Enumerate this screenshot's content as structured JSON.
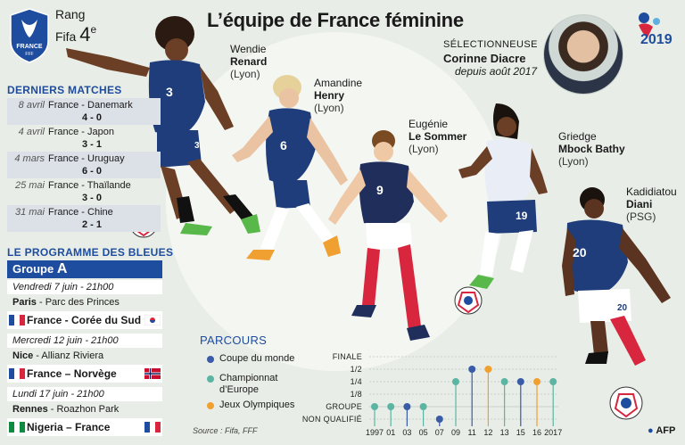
{
  "header": {
    "title": "L’équipe de France féminine",
    "rank_label": "Rang",
    "rank_fifa_label": "Fifa",
    "rank_value": "4",
    "rank_suffix": "e",
    "badge_text": "FRANCE",
    "badge_sub": "FFF",
    "worldcup_year": "2019"
  },
  "coach": {
    "role": "Sélectionneuse",
    "name": "Corinne Diacre",
    "since": "depuis août 2017"
  },
  "players": [
    {
      "first": "Wendie",
      "last": "Renard",
      "club": "(Lyon)",
      "number": "3"
    },
    {
      "first": "Amandine",
      "last": "Henry",
      "club": "(Lyon)",
      "number": "6"
    },
    {
      "first": "Eugénie",
      "last": "Le Sommer",
      "club": "(Lyon)",
      "number": "9"
    },
    {
      "first": "Griedge",
      "last": "Mbock Bathy",
      "club": "(Lyon)",
      "number": "19"
    },
    {
      "first": "Kadidiatou",
      "last": "Diani",
      "club": "(PSG)",
      "number": "20"
    }
  ],
  "recent_matches": {
    "title": "Derniers matches",
    "items": [
      {
        "date": "8 avril",
        "teams": "France - Danemark",
        "score": "4 - 0"
      },
      {
        "date": "4 avril",
        "teams": "France - Japon",
        "score": "3 - 1"
      },
      {
        "date": "4 mars",
        "teams": "France - Uruguay",
        "score": "6 - 0"
      },
      {
        "date": "25 mai",
        "teams": "France - Thaïlande",
        "score": "3 - 0"
      },
      {
        "date": "31 mai",
        "teams": "France - Chine",
        "score": "2 - 1"
      }
    ]
  },
  "programme": {
    "title": "Le programme des Bleues",
    "group_label": "Groupe",
    "group_letter": "A",
    "fixtures": [
      {
        "date": "Vendredi 7 juin - 21h00",
        "city": "Paris",
        "stadium": " - Parc des Princes",
        "match": "France - Corée du Sud"
      },
      {
        "date": "Mercredi 12 juin - 21h00",
        "city": "Nice",
        "stadium": " - Allianz Riviera",
        "match": "France – Norvège"
      },
      {
        "date": "Lundi 17 juin - 21h00",
        "city": "Rennes",
        "stadium": " - Roazhon Park",
        "match": "Nigeria – France"
      }
    ]
  },
  "parcours": {
    "title": "Parcours",
    "legend": [
      {
        "label": "Coupe du monde",
        "color": "#3a5ba8"
      },
      {
        "label": "Championnat d’Europe",
        "color": "#5bb5a2"
      },
      {
        "label": "Jeux Olympiques",
        "color": "#f0a030"
      }
    ],
    "levels": [
      "Finale",
      "1/2",
      "1/4",
      "1/8",
      "Groupe",
      "Non qualifié"
    ],
    "years": [
      "1997",
      "01",
      "03",
      "05",
      "07",
      "09",
      "11",
      "12",
      "13",
      "15",
      "16",
      "2017"
    ],
    "results": [
      {
        "year": "1997",
        "level": "Groupe",
        "color": "#5bb5a2"
      },
      {
        "year": "01",
        "level": "Groupe",
        "color": "#5bb5a2"
      },
      {
        "year": "03",
        "level": "Groupe",
        "color": "#3a5ba8"
      },
      {
        "year": "05",
        "level": "Groupe",
        "color": "#5bb5a2"
      },
      {
        "year": "07",
        "level": "Non qualifié",
        "color": "#3a5ba8"
      },
      {
        "year": "09",
        "level": "1/4",
        "color": "#5bb5a2"
      },
      {
        "year": "11",
        "level": "1/2",
        "color": "#3a5ba8"
      },
      {
        "year": "12",
        "level": "1/2",
        "color": "#f0a030"
      },
      {
        "year": "13",
        "level": "1/4",
        "color": "#5bb5a2"
      },
      {
        "year": "15",
        "level": "1/4",
        "color": "#3a5ba8"
      },
      {
        "year": "16",
        "level": "1/4",
        "color": "#f0a030"
      },
      {
        "year": "2017",
        "level": "1/4",
        "color": "#5bb5a2"
      }
    ]
  },
  "footer": {
    "source": "Source : Fifa, FFF",
    "agency": "AFP"
  },
  "colors": {
    "france_blue": "#1e4c9e",
    "france_red": "#d7263d",
    "background": "#e8ede7"
  }
}
